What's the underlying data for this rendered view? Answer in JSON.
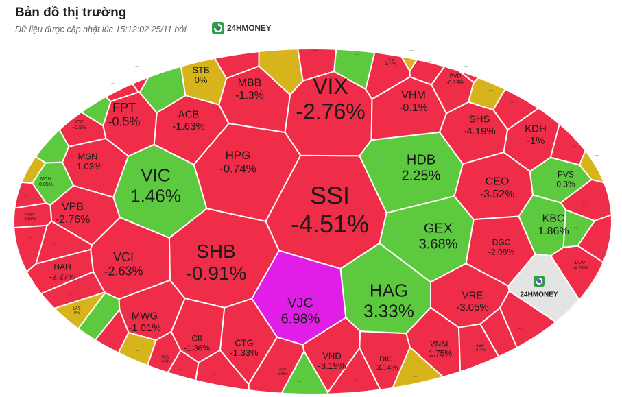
{
  "header": {
    "title": "Bản đồ thị trường",
    "subtitle": "Dữ liệu được cập nhật lúc 15:12:02 25/11 bởi",
    "brand": "24HMONEY"
  },
  "colors": {
    "up": "#5cc93f",
    "down": "#ef2d49",
    "ref": "#d7b31c",
    "ceil": "#e11ee8",
    "neutral": "#e4e4e4"
  },
  "chart_data": {
    "type": "voronoi-treemap",
    "items": [
      {
        "name": "SSI",
        "change": "-4.51%",
        "value": -4.51,
        "status": "down"
      },
      {
        "name": "VIX",
        "change": "-2.76%",
        "value": -2.76,
        "status": "down"
      },
      {
        "name": "SHB",
        "change": "-0.91%",
        "value": -0.91,
        "status": "down"
      },
      {
        "name": "VIC",
        "change": "1.46%",
        "value": 1.46,
        "status": "up"
      },
      {
        "name": "HAG",
        "change": "3.33%",
        "value": 3.33,
        "status": "up"
      },
      {
        "name": "VJC",
        "change": "6.98%",
        "value": 6.98,
        "status": "ceil"
      },
      {
        "name": "HDB",
        "change": "2.25%",
        "value": 2.25,
        "status": "up"
      },
      {
        "name": "GEX",
        "change": "3.68%",
        "value": 3.68,
        "status": "up"
      },
      {
        "name": "HPG",
        "change": "-0.74%",
        "value": -0.74,
        "status": "down"
      },
      {
        "name": "MBB",
        "change": "-1.3%",
        "value": -1.3,
        "status": "down"
      },
      {
        "name": "STB",
        "change": "0%",
        "value": 0,
        "status": "ref"
      },
      {
        "name": "ACB",
        "change": "-1.63%",
        "value": -1.63,
        "status": "down"
      },
      {
        "name": "FPT",
        "change": "-0.5%",
        "value": -0.5,
        "status": "down"
      },
      {
        "name": "VHM",
        "change": "-0.1%",
        "value": -0.1,
        "status": "down"
      },
      {
        "name": "SHS",
        "change": "-4.19%",
        "value": -4.19,
        "status": "down"
      },
      {
        "name": "KDH",
        "change": "-1%",
        "value": -1,
        "status": "down"
      },
      {
        "name": "CEO",
        "change": "-3.52%",
        "value": -3.52,
        "status": "down"
      },
      {
        "name": "PVS",
        "change": "0.3%",
        "value": 0.3,
        "status": "up"
      },
      {
        "name": "KBC",
        "change": "1.86%",
        "value": 1.86,
        "status": "up"
      },
      {
        "name": "DGC",
        "change": "-2.08%",
        "value": -2.08,
        "status": "down"
      },
      {
        "name": "VRE",
        "change": "-3.05%",
        "value": -3.05,
        "status": "down"
      },
      {
        "name": "VND",
        "change": "-3.19%",
        "value": -3.19,
        "status": "down"
      },
      {
        "name": "DIG",
        "change": "-3.14%",
        "value": -3.14,
        "status": "down"
      },
      {
        "name": "VNM",
        "change": "-1.75%",
        "value": -1.75,
        "status": "down"
      },
      {
        "name": "CTG",
        "change": "-1.33%",
        "value": -1.33,
        "status": "down"
      },
      {
        "name": "CII",
        "change": "-1.36%",
        "value": -1.36,
        "status": "down"
      },
      {
        "name": "MWG",
        "change": "-1.01%",
        "value": -1.01,
        "status": "down"
      },
      {
        "name": "VCI",
        "change": "-2.63%",
        "value": -2.63,
        "status": "down"
      },
      {
        "name": "VPB",
        "change": "-2.76%",
        "value": -2.76,
        "status": "down"
      },
      {
        "name": "MSN",
        "change": "-1.03%",
        "value": -1.03,
        "status": "down"
      },
      {
        "name": "HAH",
        "change": "-2.27%",
        "value": -2.27,
        "status": "down"
      },
      {
        "name": "IDC",
        "change": "-0.5%",
        "value": -0.5,
        "status": "down"
      },
      {
        "name": "MCH",
        "change": "0.05%",
        "value": 0.05,
        "status": "up"
      },
      {
        "name": "VNP",
        "change": "-3.83%",
        "value": -3.83,
        "status": "down"
      },
      {
        "name": "LAS",
        "change": "0%",
        "value": 0,
        "status": "ref"
      },
      {
        "name": "MBS",
        "change": "-3.4%",
        "value": -3.4,
        "status": "down"
      },
      {
        "name": "ACV",
        "change": "-2.65%",
        "value": -2.65,
        "status": "down"
      },
      {
        "name": "TCB",
        "change": "-1.47%",
        "value": -1.47,
        "status": "down"
      },
      {
        "name": "PVD",
        "change": "-0.19%",
        "value": -0.19,
        "status": "down"
      },
      {
        "name": "ABB",
        "change": "-3.4%",
        "value": -3.4,
        "status": "down"
      },
      {
        "name": "DDV",
        "change": "-4.26%",
        "value": -4.26,
        "status": "down"
      }
    ],
    "more_label": "...",
    "legend": "none"
  }
}
